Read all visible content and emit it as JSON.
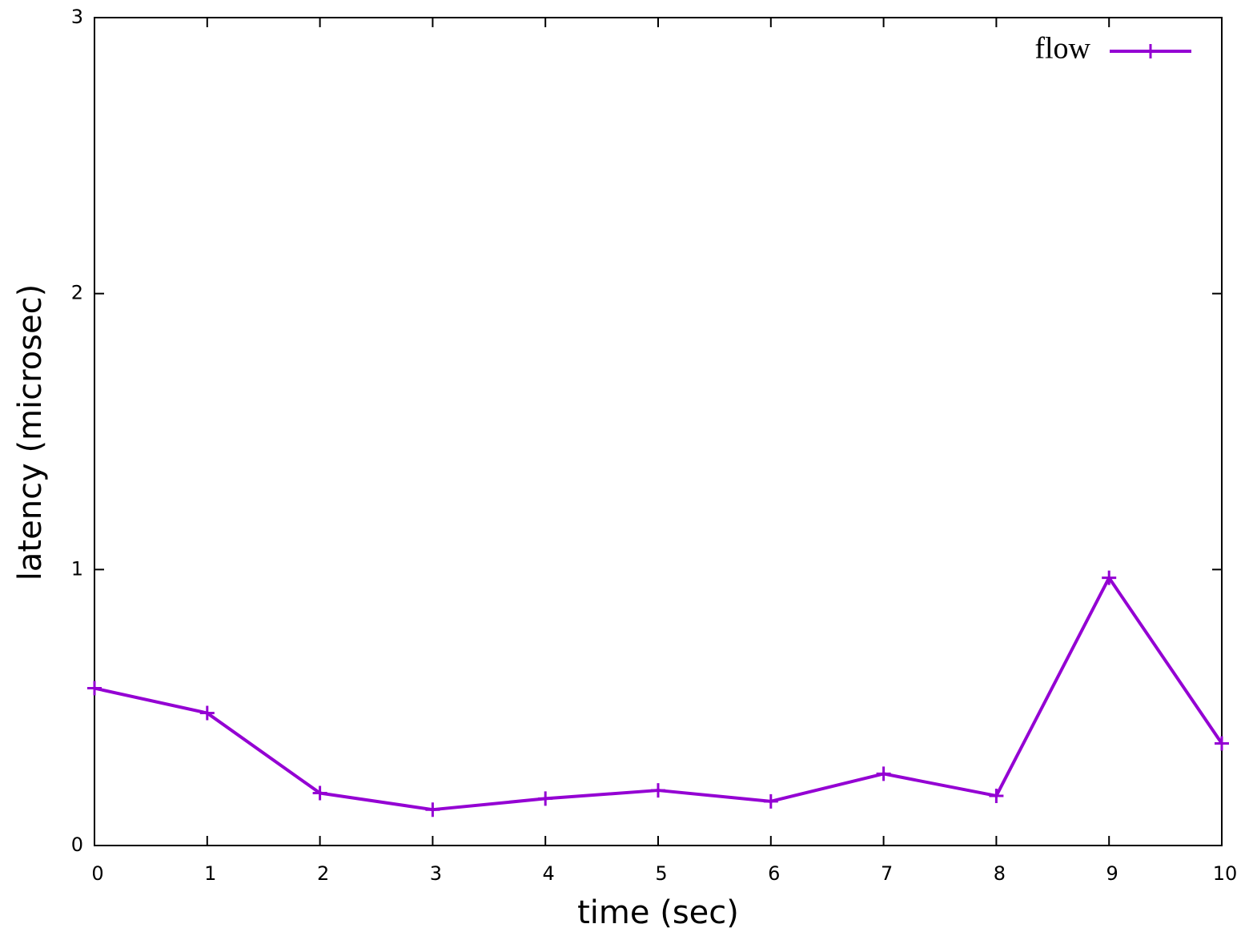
{
  "chart_data": {
    "type": "line",
    "x_label": "time (sec)",
    "y_label": "latency (microsec)",
    "x": [
      0,
      1,
      2,
      3,
      4,
      5,
      6,
      7,
      8,
      9,
      10
    ],
    "series": [
      {
        "name": "flow",
        "color": "#9400d3",
        "values": [
          0.57,
          0.48,
          0.19,
          0.13,
          0.17,
          0.2,
          0.16,
          0.26,
          0.18,
          0.97,
          0.37
        ]
      }
    ],
    "xlim": [
      0,
      10
    ],
    "ylim": [
      0,
      3
    ],
    "xticks": [
      0,
      1,
      2,
      3,
      4,
      5,
      6,
      7,
      8,
      9,
      10
    ],
    "yticks": [
      0,
      1,
      2,
      3
    ],
    "grid": false,
    "legend_position": "top-right"
  }
}
